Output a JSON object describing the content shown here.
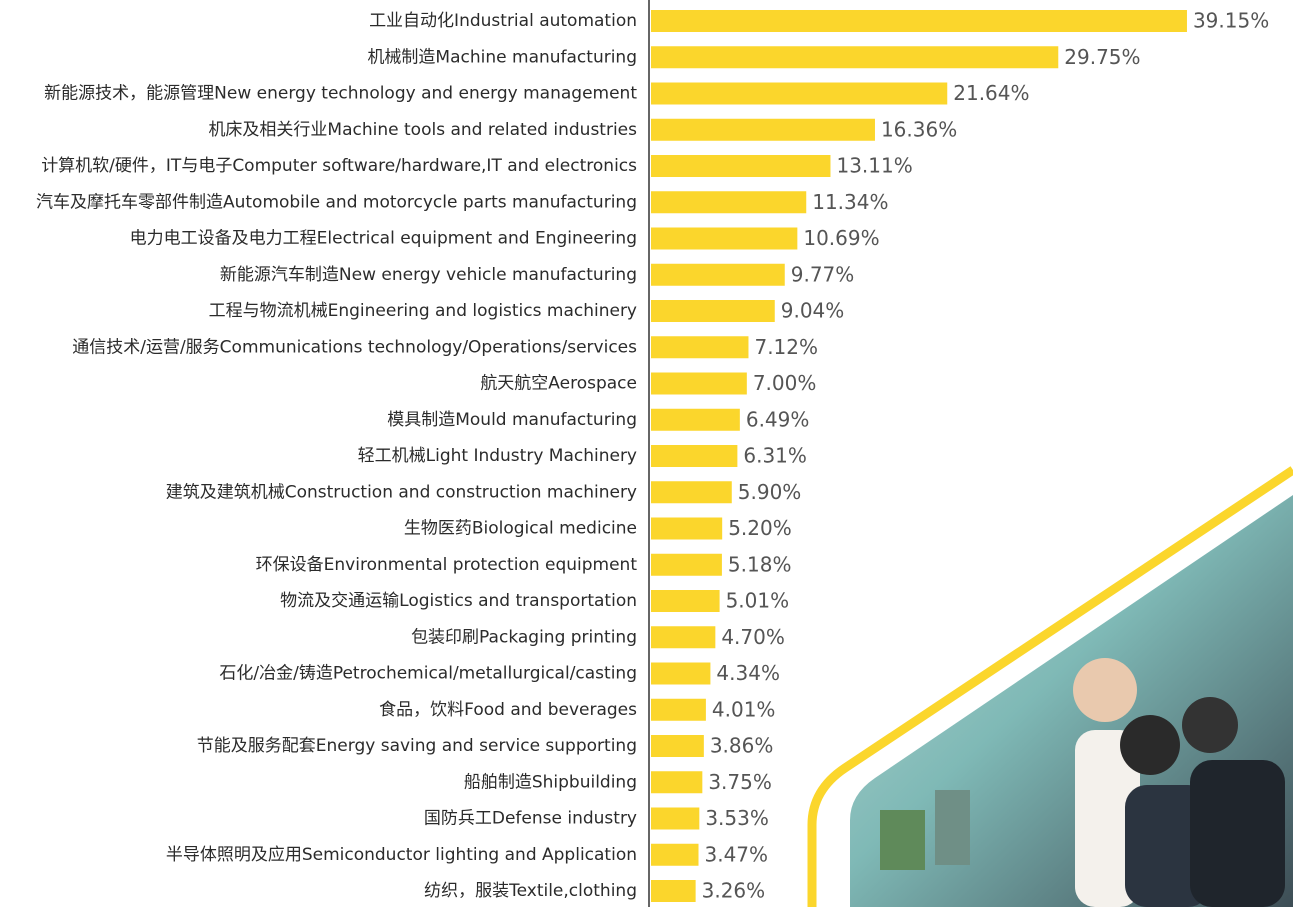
{
  "chart_data": {
    "type": "bar",
    "orientation": "horizontal",
    "color": "#fbd62c",
    "categories": [
      "工业自动化Industrial automation",
      "机械制造Machine manufacturing",
      "新能源技术，能源管理New energy technology and energy management",
      "机床及相关行业Machine tools and related industries",
      "计算机软/硬件，IT与电子Computer software/hardware,IT and electronics",
      "汽车及摩托车零部件制造Automobile and motorcycle parts manufacturing",
      "电力电工设备及电力工程Electrical equipment and Engineering",
      "新能源汽车制造New energy vehicle manufacturing",
      "工程与物流机械Engineering and logistics machinery",
      "通信技术/运营/服务Communications technology/Operations/services",
      "航天航空Aerospace",
      "模具制造Mould manufacturing",
      "轻工机械Light Industry Machinery",
      "建筑及建筑机械Construction and construction machinery",
      "生物医药Biological medicine",
      "环保设备Environmental protection equipment",
      "物流及交通运输Logistics and transportation",
      "包装印刷Packaging printing",
      "石化/冶金/铸造Petrochemical/metallurgical/casting",
      "食品，饮料Food and beverages",
      "节能及服务配套Energy saving and service supporting",
      "船舶制造Shipbuilding",
      "国防兵工Defense industry",
      "半导体照明及应用Semiconductor lighting and Application",
      "纺织，服装Textile,clothing"
    ],
    "values": [
      39.15,
      29.75,
      21.64,
      16.36,
      13.11,
      11.34,
      10.69,
      9.77,
      9.04,
      7.12,
      7.0,
      6.49,
      6.31,
      5.9,
      5.2,
      5.18,
      5.01,
      4.7,
      4.34,
      4.01,
      3.86,
      3.75,
      3.53,
      3.47,
      3.26
    ],
    "value_labels": [
      "39.15%",
      "29.75%",
      "21.64%",
      "16.36%",
      "13.11%",
      "11.34%",
      "10.69%",
      "9.77%",
      "9.04%",
      "7.12%",
      "7.00%",
      "6.49%",
      "6.31%",
      "5.90%",
      "5.20%",
      "5.18%",
      "5.01%",
      "4.70%",
      "4.34%",
      "4.01%",
      "3.86%",
      "3.75%",
      "3.53%",
      "3.47%",
      "3.26%"
    ]
  }
}
